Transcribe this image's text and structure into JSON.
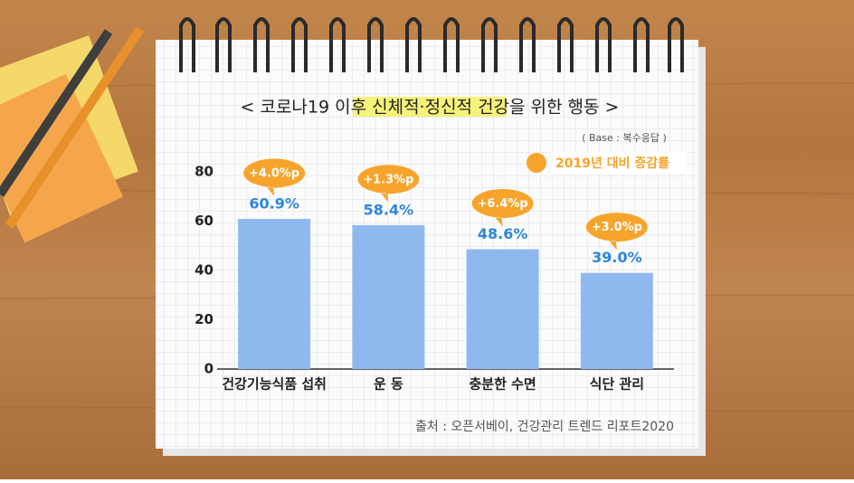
{
  "chart_data": {
    "type": "bar",
    "title": "< 코로나19 이후 신체적·정신적 건강을 위한 행동 >",
    "subtitle": "( Base : 복수응답 )",
    "categories": [
      "건강기능식품 섭취",
      "운 동",
      "충분한 수면",
      "식단 관리"
    ],
    "values": [
      60.9,
      58.4,
      48.6,
      39.0
    ],
    "value_labels": [
      "60.9%",
      "58.4%",
      "48.6%",
      "39.0%"
    ],
    "color": "#8fb9ee",
    "label_color": "#2e86d8",
    "change": {
      "name": "2019년 대비 증감률",
      "color": "#f7a42c",
      "values": [
        4.0,
        1.3,
        6.4,
        3.0
      ],
      "value_labels": [
        "+4.0%p",
        "+1.3%p",
        "+6.4%p",
        "+3.0%p"
      ]
    },
    "ylim": [
      0,
      80
    ],
    "yticks": [
      0,
      20,
      40,
      60,
      80
    ],
    "source": "출처 : 오픈서베이, 건강관리 트렌드 리포트2020"
  }
}
